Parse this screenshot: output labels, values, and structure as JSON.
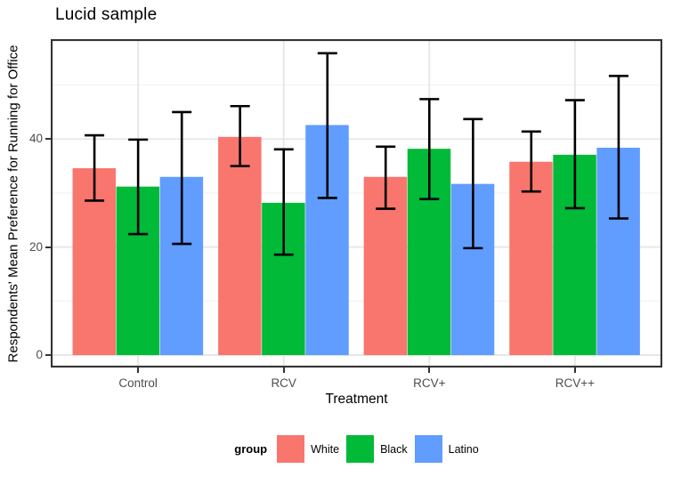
{
  "chart_data": {
    "type": "bar",
    "title": "Lucid sample",
    "xlabel": "Treatment",
    "ylabel": "Respondents' Mean Preference for Running for Office",
    "categories": [
      "Control",
      "RCV",
      "RCV+",
      "RCV++"
    ],
    "series": [
      {
        "name": "White",
        "color": "#F8766D",
        "values": [
          34.6,
          40.4,
          33.0,
          35.8
        ],
        "ci_low": [
          28.6,
          35.0,
          27.1,
          30.3
        ],
        "ci_high": [
          40.7,
          46.1,
          38.6,
          41.4
        ]
      },
      {
        "name": "Black",
        "color": "#00BA38",
        "values": [
          31.2,
          28.2,
          38.2,
          37.1
        ],
        "ci_low": [
          22.4,
          18.6,
          28.9,
          27.2
        ],
        "ci_high": [
          39.9,
          38.1,
          47.4,
          47.2
        ]
      },
      {
        "name": "Latino",
        "color": "#619CFF",
        "values": [
          33.0,
          42.6,
          31.7,
          38.4
        ],
        "ci_low": [
          20.6,
          29.1,
          19.8,
          25.3
        ],
        "ci_high": [
          45.0,
          55.9,
          43.7,
          51.7
        ]
      }
    ],
    "error_bars": true,
    "legend_title": "group",
    "legend_position": "bottom",
    "yticks": [
      0,
      20,
      40
    ],
    "minor_yticks": [
      10,
      30,
      50
    ],
    "ylim": [
      -2.3,
      58.5
    ],
    "grid": true,
    "colors": {
      "major_grid": "#e6e6e6",
      "minor_grid": "#f2f2f2",
      "panel_border": "#333333",
      "axis_text": "#4d4d4d",
      "error_bar": "#000000"
    }
  }
}
